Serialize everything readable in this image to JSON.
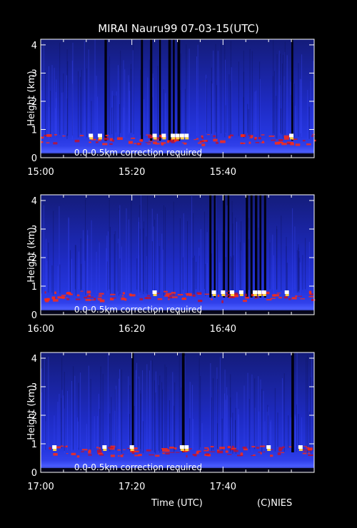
{
  "title": "MIRAI Nauru99 07-03-15(UTC)",
  "xlabel": "Time (UTC)",
  "credit": "(C)NIES",
  "colors": {
    "background": "#000000",
    "signal": "#1a2ad8",
    "cloud": "#ff2a10",
    "strong": "#ffffff",
    "text": "#ffffff"
  },
  "chart_data": [
    {
      "type": "heatmap",
      "ylabel": "Height (km)",
      "ylim": [
        0,
        4.2
      ],
      "yticks": [
        "0",
        "1",
        "2",
        "3",
        "4"
      ],
      "xticks": [
        "15:00",
        "15:20",
        "15:40"
      ],
      "annotation": "0.0-0.5km correction required",
      "cloud_base_km": 0.6,
      "bright_returns_min": [
        11,
        13,
        25,
        27,
        29,
        30,
        31,
        32,
        55
      ],
      "dark_columns_min": [
        14,
        22,
        24,
        26,
        28,
        29,
        30,
        55
      ]
    },
    {
      "type": "heatmap",
      "ylabel": "Height (km)",
      "ylim": [
        0,
        4.2
      ],
      "yticks": [
        "0",
        "1",
        "2",
        "3",
        "4"
      ],
      "xticks": [
        "16:00",
        "16:20",
        "16:40"
      ],
      "annotation": "0.0-0.5km correction required",
      "cloud_base_km": 0.6,
      "bright_returns_min": [
        25,
        38,
        40,
        42,
        44,
        47,
        48,
        49,
        54
      ],
      "dark_columns_min": [
        37,
        38,
        40,
        41,
        45,
        46,
        47,
        48,
        49
      ]
    },
    {
      "type": "heatmap",
      "ylabel": "Height (km)",
      "ylim": [
        0,
        4.2
      ],
      "yticks": [
        "0",
        "1",
        "2",
        "3",
        "4"
      ],
      "xticks": [
        "17:00",
        "17:20",
        "17:40"
      ],
      "annotation": "0.0-0.5km correction required",
      "cloud_base_km": 0.7,
      "bright_returns_min": [
        3,
        14,
        20,
        31,
        32,
        50,
        57
      ],
      "dark_columns_min": [
        20,
        31,
        55
      ]
    }
  ]
}
